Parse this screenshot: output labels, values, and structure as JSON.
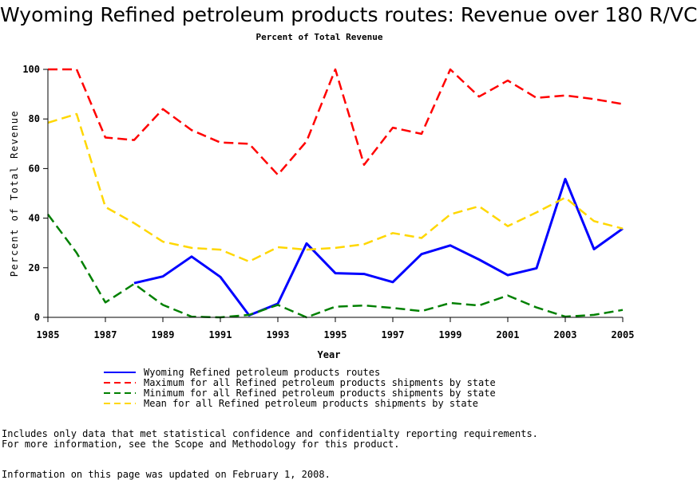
{
  "chart_data": {
    "type": "line",
    "title": "Wyoming Refined petroleum products routes: Revenue over 180 R/VC",
    "subtitle": "Percent of Total Revenue",
    "xlabel": "Year",
    "ylabel": "Percent of Total Revenue",
    "xlim": [
      1985,
      2005
    ],
    "ylim": [
      0,
      100
    ],
    "x_ticks": [
      1985,
      1987,
      1989,
      1991,
      1993,
      1995,
      1997,
      1999,
      2001,
      2003,
      2005
    ],
    "y_ticks": [
      0,
      20,
      40,
      60,
      80,
      100
    ],
    "grid": false,
    "legend_position": "bottom",
    "series": [
      {
        "name": "Wyoming Refined petroleum products routes",
        "color": "#0000ff",
        "style": "solid",
        "x": [
          1988,
          1989,
          1990,
          1991,
          1992,
          1993,
          1994,
          1995,
          1996,
          1997,
          1998,
          1999,
          2000,
          2001,
          2002,
          2003,
          2004,
          2005
        ],
        "y": [
          13.8,
          16.5,
          24.5,
          16.3,
          0.8,
          5.5,
          29.8,
          17.8,
          17.5,
          14.2,
          25.5,
          29,
          23.3,
          17,
          19.8,
          55.8,
          27.5,
          35.8
        ]
      },
      {
        "name": "Maximum for all Refined petroleum products shipments by state",
        "color": "#ff0000",
        "style": "dashed",
        "x": [
          1985,
          1986,
          1987,
          1988,
          1989,
          1990,
          1991,
          1992,
          1993,
          1994,
          1995,
          1996,
          1997,
          1998,
          1999,
          2000,
          2001,
          2002,
          2003,
          2004,
          2005
        ],
        "y": [
          100,
          100,
          72.5,
          71.5,
          84,
          75.5,
          70.5,
          70,
          57.5,
          71,
          100,
          61.5,
          76.5,
          74,
          100,
          89,
          95.5,
          88.5,
          89.5,
          88,
          86
        ]
      },
      {
        "name": "Minimum for all Refined petroleum products shipments by state",
        "color": "#008000",
        "style": "dashed",
        "x": [
          1985,
          1986,
          1987,
          1988,
          1989,
          1990,
          1991,
          1992,
          1993,
          1994,
          1995,
          1996,
          1997,
          1998,
          1999,
          2000,
          2001,
          2002,
          2003,
          2004,
          2005
        ],
        "y": [
          41.5,
          26,
          6,
          13.5,
          5,
          0.3,
          0,
          1,
          5,
          0,
          4.3,
          4.8,
          3.8,
          2.5,
          5.8,
          4.8,
          8.8,
          4,
          0.3,
          1,
          3
        ]
      },
      {
        "name": "Mean for all Refined petroleum products shipments by state",
        "color": "#ffd700",
        "style": "dashed",
        "x": [
          1985,
          1986,
          1987,
          1988,
          1989,
          1990,
          1991,
          1992,
          1993,
          1994,
          1995,
          1996,
          1997,
          1998,
          1999,
          2000,
          2001,
          2002,
          2003,
          2004,
          2005
        ],
        "y": [
          78.5,
          82,
          44.5,
          38,
          30.5,
          28,
          27.3,
          22.5,
          28.3,
          27.3,
          28,
          29.5,
          34,
          32,
          41.5,
          44.8,
          36.8,
          42.3,
          48.3,
          38.8,
          35.8
        ]
      }
    ]
  },
  "notes": {
    "line1": "Includes only data that met statistical confidence and confidentialty reporting requirements.",
    "line2": "For more information, see the Scope and Methodology for this product.",
    "line3": "Information on this page was updated on February 1, 2008."
  }
}
